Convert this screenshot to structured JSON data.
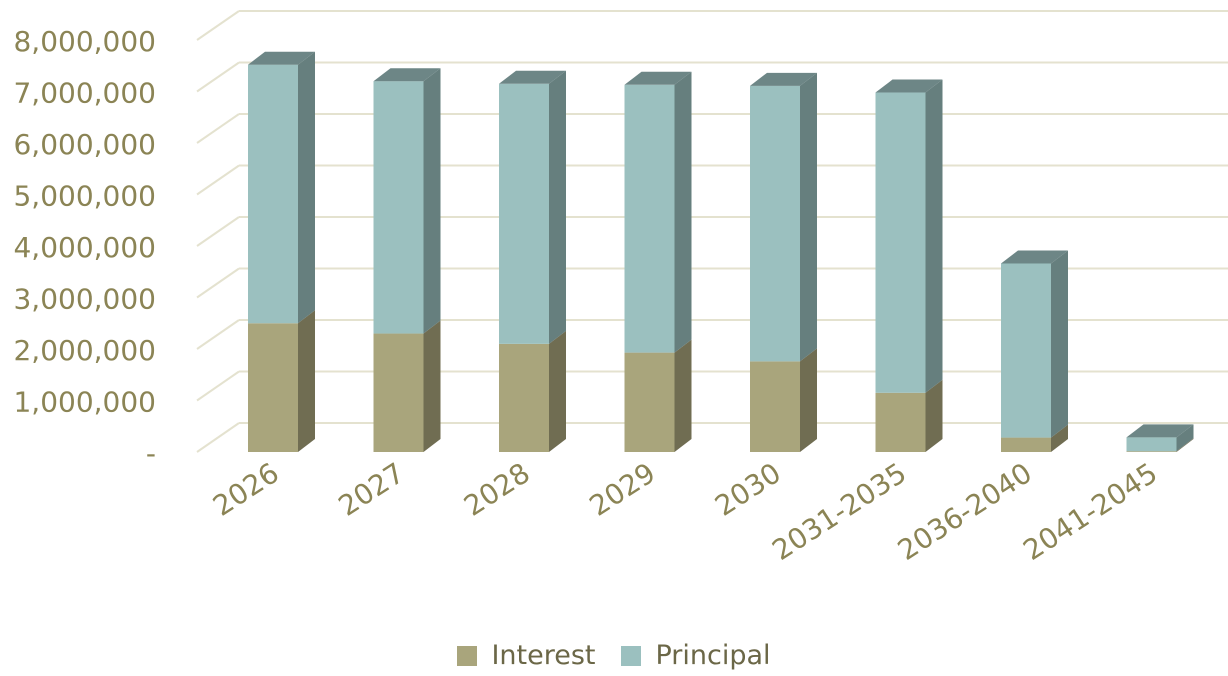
{
  "chart_data": {
    "type": "bar",
    "stacked": true,
    "three_d": true,
    "categories": [
      "2026",
      "2027",
      "2028",
      "2029",
      "2030",
      "2031-2035",
      "2036-2040",
      "2041-2045"
    ],
    "series": [
      {
        "name": "Interest",
        "color": "#a9a57c",
        "values": [
          2500000,
          2300000,
          2100000,
          1930000,
          1760000,
          1150000,
          280000,
          15000
        ]
      },
      {
        "name": "Principal",
        "color": "#9bc0bf",
        "values": [
          5020000,
          4900000,
          5050000,
          5200000,
          5350000,
          5830000,
          3380000,
          270000
        ]
      }
    ],
    "ylim": [
      0,
      8000000
    ],
    "yticks": [
      0,
      1000000,
      2000000,
      3000000,
      4000000,
      5000000,
      6000000,
      7000000,
      8000000
    ],
    "ytick_labels": [
      "-",
      "1,000,000",
      "2,000,000",
      "3,000,000",
      "4,000,000",
      "5,000,000",
      "6,000,000",
      "7,000,000",
      "8,000,000"
    ],
    "grid": true,
    "legend_position": "bottom"
  }
}
